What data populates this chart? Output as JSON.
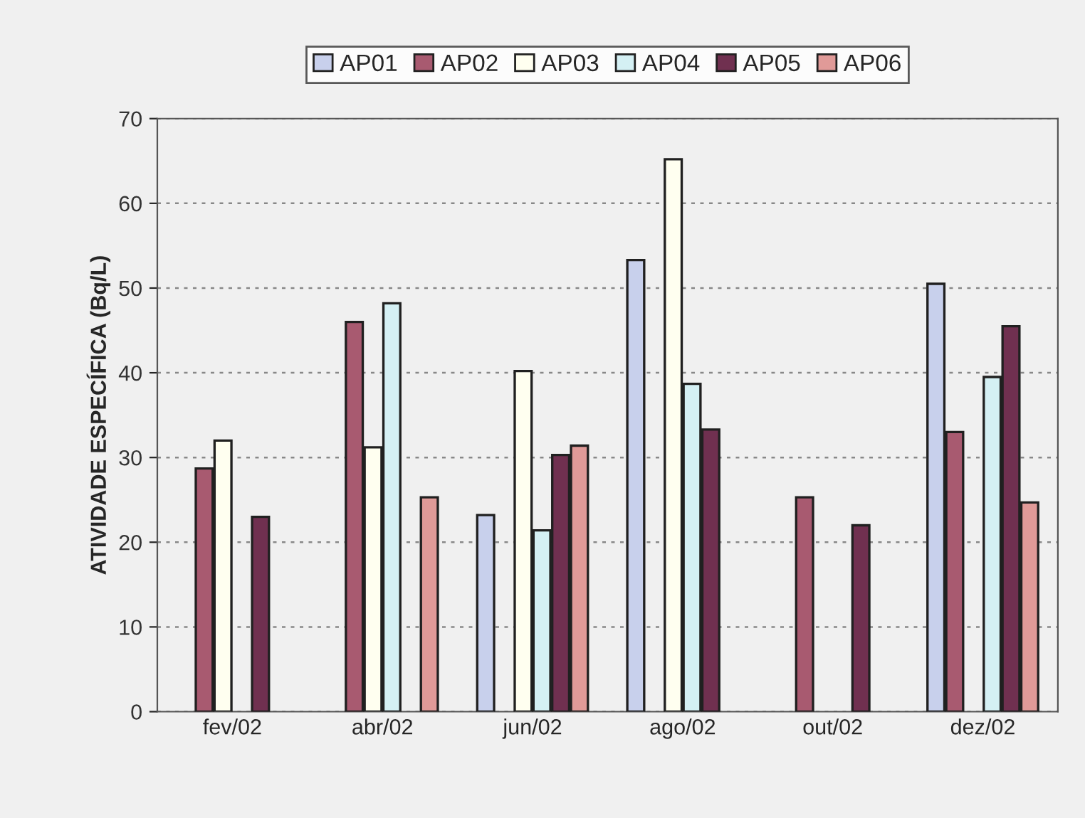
{
  "chart_data": {
    "type": "bar",
    "ylabel": "ATIVIDADE ESPECÍFICA (Bq/L)",
    "categories": [
      "fev/02",
      "abr/02",
      "jun/02",
      "ago/02",
      "out/02",
      "dez/02"
    ],
    "series": [
      {
        "name": "AP01",
        "color": "#c8d0ec",
        "values": [
          null,
          null,
          23.2,
          53.3,
          null,
          50.5
        ]
      },
      {
        "name": "AP02",
        "color": "#a85a70",
        "values": [
          28.7,
          46,
          null,
          null,
          25.3,
          33
        ]
      },
      {
        "name": "AP03",
        "color": "#fffff0",
        "values": [
          32,
          31.2,
          40.2,
          65.2,
          null,
          null
        ]
      },
      {
        "name": "AP04",
        "color": "#d4f0f4",
        "values": [
          null,
          48.2,
          21.4,
          38.7,
          null,
          39.5
        ]
      },
      {
        "name": "AP05",
        "color": "#703050",
        "values": [
          23,
          null,
          30.3,
          33.3,
          22,
          45.5
        ]
      },
      {
        "name": "AP06",
        "color": "#e09a98",
        "values": [
          null,
          25.3,
          31.4,
          null,
          null,
          24.7
        ]
      }
    ],
    "ylim": [
      0,
      70
    ],
    "yticks": [
      0,
      10,
      20,
      30,
      40,
      50,
      60,
      70
    ],
    "grid": "y",
    "legend": "top"
  }
}
